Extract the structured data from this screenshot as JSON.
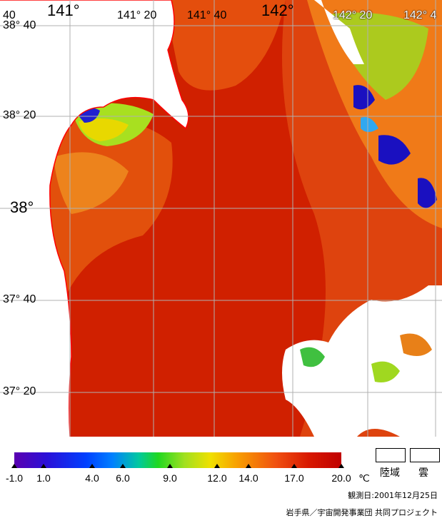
{
  "map": {
    "lon_labels": [
      "40",
      "141°",
      "141° 20",
      "141° 40",
      "142°",
      "142° 20",
      "142° 4"
    ],
    "lat_labels": [
      "38° 40",
      "38° 20",
      "38°",
      "37° 40",
      "37° 20"
    ]
  },
  "legend": {
    "scale_labels": [
      "-1.0",
      "1.0",
      "4.0",
      "6.0",
      "9.0",
      "12.0",
      "14.0",
      "17.0",
      "20.0"
    ],
    "unit": "℃",
    "land_label": "陸域",
    "cloud_label": "雲",
    "observation_date": "観測日:2001年12月25日",
    "credit": "岩手県／宇宙開発事業団 共同プロジェクト"
  },
  "colors": {
    "sea_warm": "#c81800",
    "sea_mid": "#e84a10",
    "coast_line": "#ff0000",
    "grid": "#b0b0b0",
    "land": "#ffffff",
    "cold_blue": "#1a10c0",
    "green": "#40d040"
  }
}
